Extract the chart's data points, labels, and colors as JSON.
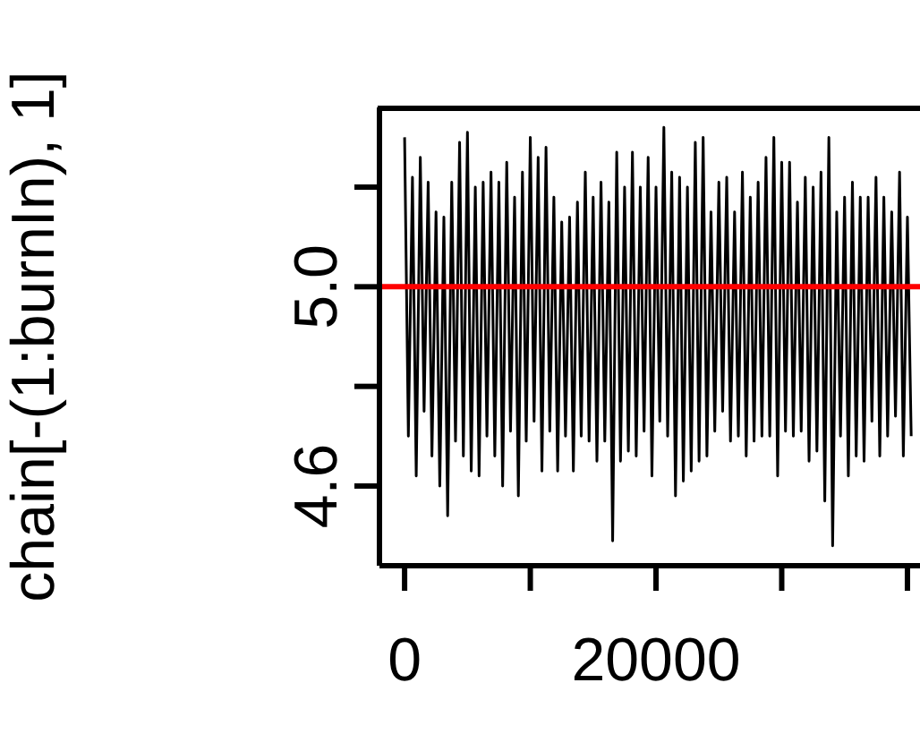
{
  "chart_data": {
    "type": "line",
    "ylabel": "chain[-(1:burnIn), 1]",
    "x": [
      0,
      300,
      625,
      925,
      1250,
      1550,
      1875,
      2175,
      2500,
      2800,
      3125,
      3425,
      3750,
      4050,
      4375,
      4675,
      5000,
      5300,
      5625,
      5925,
      6250,
      6550,
      6875,
      7175,
      7500,
      7800,
      8125,
      8425,
      8750,
      9050,
      9375,
      9675,
      10000,
      10300,
      10625,
      10925,
      11250,
      11550,
      11875,
      12175,
      12500,
      12800,
      13125,
      13425,
      13750,
      14050,
      14375,
      14675,
      15000,
      15300,
      15625,
      15925,
      16250,
      16550,
      16875,
      17175,
      17500,
      17800,
      18125,
      18425,
      18750,
      19050,
      19375,
      19675,
      20000,
      20300,
      20625,
      20925,
      21250,
      21550,
      21875,
      22175,
      22500,
      22800,
      23125,
      23425,
      23750,
      24050,
      24375,
      24675,
      25000,
      25300,
      25625,
      25925,
      26250,
      26550,
      26875,
      27175,
      27500,
      27800,
      28125,
      28425,
      28750,
      29050,
      29375,
      29675,
      30000,
      30300,
      30625,
      30925,
      31250,
      31550,
      31875,
      32175,
      32500,
      32800,
      33125,
      33425,
      33750,
      34050,
      34375,
      34675,
      35000,
      35300,
      35625,
      35925,
      36250,
      36550,
      36875,
      37175,
      37500,
      37800,
      38125,
      38425,
      38750,
      39050,
      39375,
      39675,
      40000,
      40300
    ],
    "series": [
      {
        "color": "#000000",
        "values": [
          5.3,
          4.7,
          5.22,
          4.62,
          5.26,
          4.75,
          5.21,
          4.66,
          5.15,
          4.6,
          5.14,
          4.54,
          5.21,
          4.69,
          5.29,
          4.66,
          5.31,
          4.63,
          5.2,
          4.62,
          5.21,
          4.7,
          5.23,
          4.66,
          5.21,
          4.6,
          5.25,
          4.71,
          5.18,
          4.58,
          5.23,
          4.69,
          5.3,
          4.73,
          5.26,
          4.63,
          5.28,
          4.71,
          5.18,
          4.63,
          5.13,
          4.7,
          5.14,
          4.63,
          5.17,
          4.7,
          5.23,
          4.69,
          5.18,
          4.65,
          5.21,
          4.69,
          5.17,
          4.49,
          5.27,
          4.65,
          5.2,
          4.67,
          5.27,
          4.66,
          5.2,
          4.71,
          5.26,
          4.62,
          5.2,
          4.73,
          5.32,
          4.7,
          5.23,
          4.58,
          5.22,
          4.61,
          5.2,
          4.63,
          5.29,
          4.65,
          5.3,
          4.66,
          5.15,
          4.71,
          5.21,
          4.75,
          5.22,
          4.69,
          5.15,
          4.7,
          5.23,
          4.66,
          5.18,
          4.69,
          5.21,
          4.7,
          5.26,
          4.7,
          5.3,
          4.62,
          5.25,
          4.71,
          5.25,
          4.7,
          5.17,
          4.71,
          5.22,
          4.65,
          5.2,
          4.67,
          5.23,
          4.57,
          5.3,
          4.48,
          5.15,
          4.7,
          5.18,
          4.62,
          5.21,
          4.66,
          5.18,
          4.65,
          5.18,
          4.73,
          5.22,
          4.66,
          5.18,
          4.7,
          5.15,
          4.74,
          5.23,
          4.66,
          5.14,
          4.7
        ]
      }
    ],
    "xlim": [
      -2000,
      41000
    ],
    "xticks": [
      0,
      {
        "value": 10000,
        "label": null
      },
      20000,
      {
        "value": 30000,
        "label": null
      },
      {
        "value": 40000,
        "label": null
      }
    ],
    "ylim": [
      4.44,
      5.36
    ],
    "yticks": [
      4.6,
      {
        "value": 4.8,
        "label": null
      },
      {
        "value": 5.0,
        "label": "5.0"
      },
      {
        "value": 5.2,
        "label": null
      }
    ],
    "ref_lines": [
      {
        "axis": "y",
        "value": 5.0,
        "color": "#ff0000"
      }
    ],
    "marker": "none",
    "line_style": "solid"
  }
}
